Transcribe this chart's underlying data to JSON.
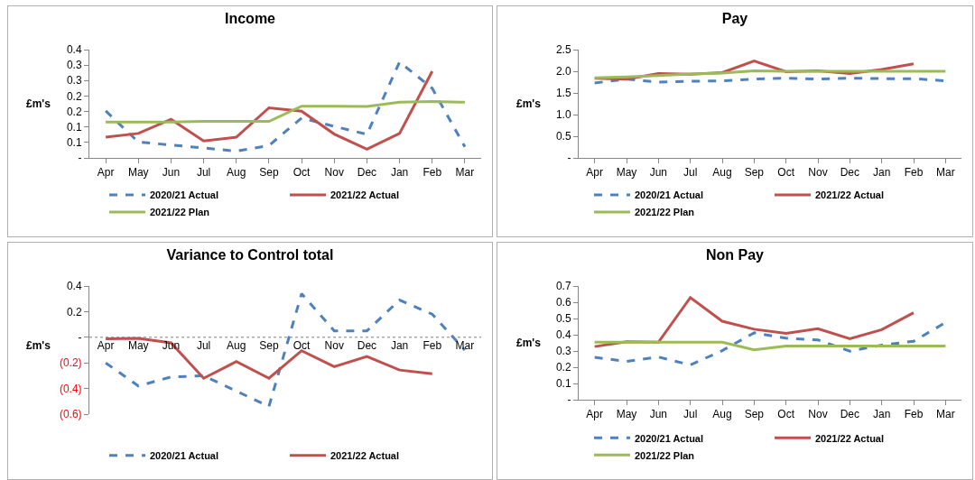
{
  "chart_data": [
    {
      "type": "line",
      "title": "Income",
      "ylabel": "£m's",
      "categories": [
        "Apr",
        "May",
        "Jun",
        "Jul",
        "Aug",
        "Sep",
        "Oct",
        "Nov",
        "Dec",
        "Jan",
        "Feb",
        "Mar"
      ],
      "ylim": [
        0,
        0.35
      ],
      "yticks": [
        {
          "value": 0,
          "label": "-"
        },
        {
          "value": 0.05,
          "label": "0.1"
        },
        {
          "value": 0.1,
          "label": "0.1"
        },
        {
          "value": 0.15,
          "label": "0.2"
        },
        {
          "value": 0.2,
          "label": "0.2"
        },
        {
          "value": 0.25,
          "label": "0.3"
        },
        {
          "value": 0.3,
          "label": "0.3"
        },
        {
          "value": 0.35,
          "label": "0.4"
        }
      ],
      "grid": false,
      "legend": "bottom",
      "series": [
        {
          "name": "2020/21 Actual",
          "color": "#4f81bd",
          "line_style": "dashed",
          "values": [
            0.152,
            0.051,
            0.042,
            0.032,
            0.022,
            0.04,
            0.129,
            0.102,
            0.076,
            0.31,
            0.225,
            0.036
          ]
        },
        {
          "name": "2021/22 Actual",
          "color": "#c0504d",
          "line_style": "solid",
          "values": [
            0.067,
            0.079,
            0.125,
            0.055,
            0.067,
            0.162,
            0.151,
            0.077,
            0.028,
            0.079,
            0.28,
            null
          ]
        },
        {
          "name": "2021/22 Plan",
          "color": "#9bbb59",
          "line_style": "solid",
          "values": [
            0.116,
            0.116,
            0.116,
            0.118,
            0.118,
            0.118,
            0.167,
            0.167,
            0.166,
            0.18,
            0.182,
            0.18
          ]
        }
      ]
    },
    {
      "type": "line",
      "title": "Pay",
      "ylabel": "£m's",
      "categories": [
        "Apr",
        "May",
        "Jun",
        "Jul",
        "Aug",
        "Sep",
        "Oct",
        "Nov",
        "Dec",
        "Jan",
        "Feb",
        "Mar"
      ],
      "ylim": [
        0,
        2.5
      ],
      "yticks": [
        {
          "value": 0,
          "label": "-"
        },
        {
          "value": 0.5,
          "label": "0.5"
        },
        {
          "value": 1,
          "label": "1.0"
        },
        {
          "value": 1.5,
          "label": "1.5"
        },
        {
          "value": 2,
          "label": "2.0"
        },
        {
          "value": 2.5,
          "label": "2.5"
        }
      ],
      "grid": false,
      "legend": "bottom",
      "series": [
        {
          "name": "2020/21 Actual",
          "color": "#4f81bd",
          "line_style": "dashed",
          "values": [
            1.73,
            1.82,
            1.75,
            1.77,
            1.78,
            1.82,
            1.84,
            1.82,
            1.84,
            1.83,
            1.83,
            1.78
          ]
        },
        {
          "name": "2021/22 Actual",
          "color": "#c0504d",
          "line_style": "solid",
          "values": [
            1.84,
            1.82,
            1.95,
            1.93,
            1.97,
            2.24,
            1.99,
            2.01,
            1.95,
            2.04,
            2.17,
            null
          ]
        },
        {
          "name": "2021/22 Plan",
          "color": "#9bbb59",
          "line_style": "solid",
          "values": [
            1.85,
            1.87,
            1.9,
            1.94,
            1.96,
            2.01,
            2.0,
            2.0,
            2.0,
            2.0,
            2.0,
            2.0
          ]
        }
      ]
    },
    {
      "type": "line",
      "title": "Variance to Control total",
      "ylabel": "£m's",
      "categories": [
        "Apr",
        "May",
        "Jun",
        "Jul",
        "Aug",
        "Sep",
        "Oct",
        "Nov",
        "Dec",
        "Jan",
        "Feb",
        "Mar"
      ],
      "ylim": [
        -0.6,
        0.4
      ],
      "yticks": [
        {
          "value": -0.6,
          "label": "(0.6)"
        },
        {
          "value": -0.4,
          "label": "(0.4)"
        },
        {
          "value": -0.2,
          "label": "(0.2)"
        },
        {
          "value": 0,
          "label": "-"
        },
        0.2,
        0.4
      ],
      "grid": false,
      "legend": "bottom",
      "ref_lines": [
        {
          "axis": "y",
          "value": 0,
          "color": "#808080",
          "line_style": "dotted"
        }
      ],
      "series": [
        {
          "name": "2020/21 Actual",
          "color": "#4f81bd",
          "line_style": "dashed",
          "values": [
            -0.2,
            -0.38,
            -0.31,
            -0.3,
            -0.42,
            -0.54,
            0.34,
            0.05,
            0.05,
            0.29,
            0.18,
            -0.1
          ]
        },
        {
          "name": "2021/22 Actual",
          "color": "#c0504d",
          "line_style": "solid",
          "values": [
            -0.012,
            -0.008,
            -0.043,
            -0.32,
            -0.19,
            -0.32,
            -0.105,
            -0.23,
            -0.15,
            -0.256,
            -0.285,
            null
          ]
        }
      ]
    },
    {
      "type": "line",
      "title": "Non Pay",
      "ylabel": "£m's",
      "categories": [
        "Apr",
        "May",
        "Jun",
        "Jul",
        "Aug",
        "Sep",
        "Oct",
        "Nov",
        "Dec",
        "Jan",
        "Feb",
        "Mar"
      ],
      "ylim": [
        0,
        0.7
      ],
      "yticks": [
        {
          "value": 0,
          "label": "-"
        },
        0.1,
        0.2,
        0.3,
        0.4,
        0.5,
        0.6,
        0.7
      ],
      "grid": false,
      "legend": "bottom",
      "series": [
        {
          "name": "2020/21 Actual",
          "color": "#4f81bd",
          "line_style": "dashed",
          "values": [
            0.261,
            0.236,
            0.263,
            0.214,
            0.302,
            0.412,
            0.379,
            0.368,
            0.299,
            0.336,
            0.36,
            0.475
          ]
        },
        {
          "name": "2021/22 Actual",
          "color": "#c0504d",
          "line_style": "solid",
          "values": [
            0.327,
            0.357,
            0.354,
            0.629,
            0.483,
            0.434,
            0.409,
            0.437,
            0.376,
            0.431,
            0.535,
            null
          ]
        },
        {
          "name": "2021/22 Plan",
          "color": "#9bbb59",
          "line_style": "solid",
          "values": [
            0.354,
            0.354,
            0.354,
            0.354,
            0.354,
            0.307,
            0.33,
            0.33,
            0.33,
            0.33,
            0.33,
            0.33
          ]
        }
      ]
    }
  ]
}
